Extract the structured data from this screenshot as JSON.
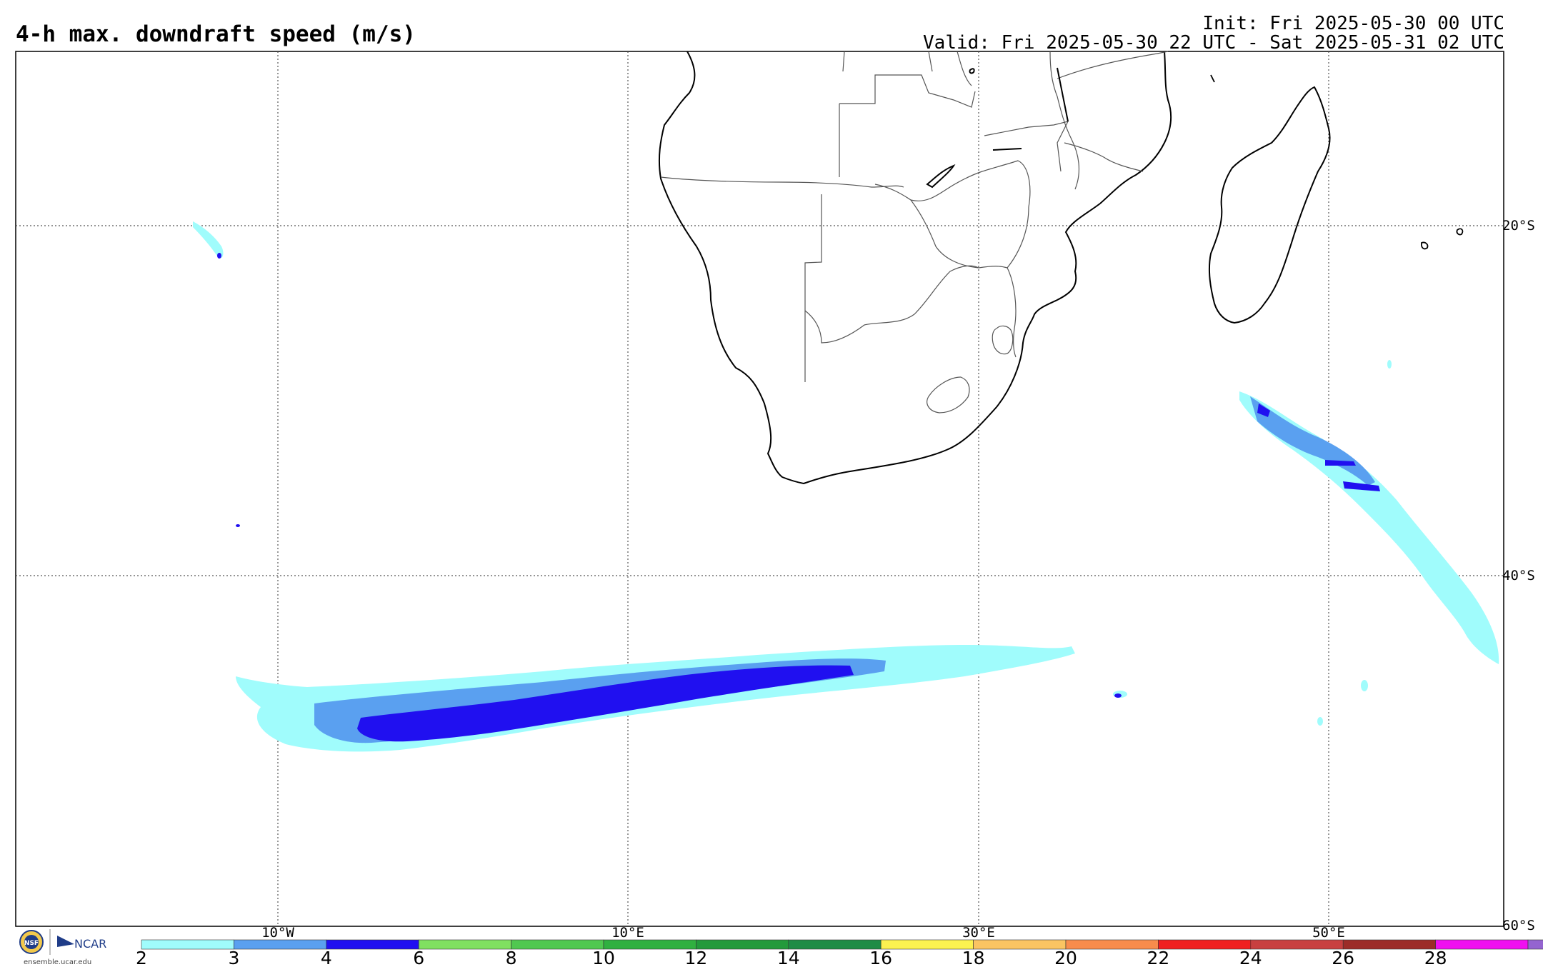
{
  "header": {
    "title": "4-h max. downdraft speed (m/s)",
    "init": "Init: Fri 2025-05-30 00 UTC",
    "valid": "Valid: Fri 2025-05-30 22 UTC - Sat 2025-05-31 02 UTC"
  },
  "grid": {
    "longitudes": [
      "10°W",
      "10°E",
      "30°E",
      "50°E"
    ],
    "latitudes": [
      "20°S",
      "40°S",
      "60°S"
    ]
  },
  "colorbar": {
    "ticks": [
      "2",
      "3",
      "4",
      "6",
      "8",
      "10",
      "12",
      "14",
      "16",
      "18",
      "20",
      "22",
      "24",
      "26",
      "28"
    ],
    "colors": [
      "#a0fcfc",
      "#5aa0f0",
      "#2010f0",
      "#80e060",
      "#50c850",
      "#30b040",
      "#239a3c",
      "#1e8c46",
      "#fcf250",
      "#fac462",
      "#f88c4c",
      "#f02020",
      "#c84040",
      "#9c2c28",
      "#f010f0",
      "#9464d0"
    ]
  },
  "logo": {
    "nsf": "NSF",
    "ncar": "NCAR",
    "url": "ensemble.ucar.edu"
  },
  "colors": {
    "light": "#a0fcfc",
    "medium": "#5aa0f0",
    "strong": "#2010f0"
  }
}
